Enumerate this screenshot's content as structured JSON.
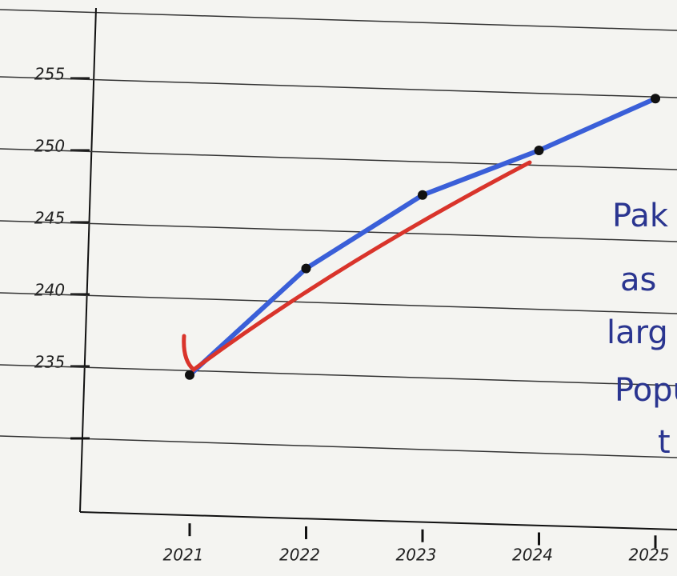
{
  "chart_data": {
    "type": "line",
    "categories": [
      "2021",
      "2022",
      "2023",
      "2024",
      "2025"
    ],
    "series": [
      {
        "color": "#3a5fd8",
        "values": [
          234.4,
          241.8,
          246.9,
          250,
          253.6
        ]
      }
    ],
    "ylim": [
      225,
      260
    ],
    "yticks": [
      235,
      240,
      245,
      250,
      255
    ],
    "grid": true,
    "annotations": [
      "Pak",
      "as",
      "larg",
      "Popu",
      "t"
    ]
  }
}
